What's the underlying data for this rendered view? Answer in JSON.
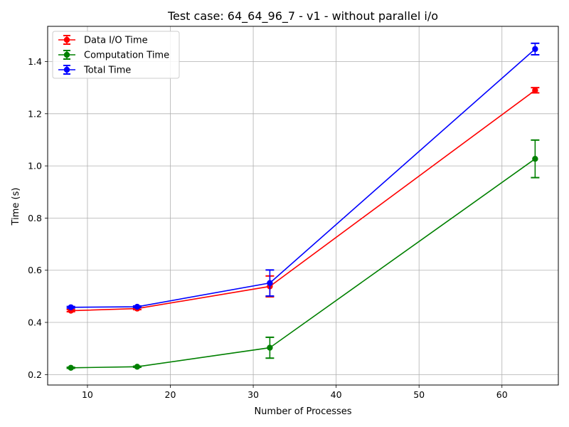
{
  "chart_data": {
    "type": "line",
    "title": "Test case: 64_64_96_7 - v1 - without parallel i/o",
    "xlabel": "Number of Processes",
    "ylabel": "Time (s)",
    "xlim": [
      5.2,
      66.8
    ],
    "ylim": [
      0.16,
      1.535
    ],
    "xticks": [
      10,
      20,
      30,
      40,
      50,
      60
    ],
    "yticks": [
      0.2,
      0.4,
      0.6,
      0.8,
      1.0,
      1.2,
      1.4
    ],
    "ytick_labels": [
      "0.2",
      "0.4",
      "0.6",
      "0.8",
      "1.0",
      "1.2",
      "1.4"
    ],
    "grid": true,
    "legend_position": "top-left",
    "x": [
      8,
      16,
      32,
      64
    ],
    "series": [
      {
        "name": "Data I/O Time",
        "color": "#ff0000",
        "values": [
          0.445,
          0.453,
          0.538,
          1.29
        ],
        "errors": [
          0.004,
          0.004,
          0.04,
          0.01
        ]
      },
      {
        "name": "Computation Time",
        "color": "#008000",
        "values": [
          0.226,
          0.23,
          0.303,
          1.027
        ],
        "errors": [
          0.002,
          0.002,
          0.04,
          0.072
        ]
      },
      {
        "name": "Total Time",
        "color": "#0000ff",
        "values": [
          0.458,
          0.46,
          0.551,
          1.448
        ],
        "errors": [
          0.003,
          0.003,
          0.05,
          0.022
        ]
      }
    ]
  }
}
